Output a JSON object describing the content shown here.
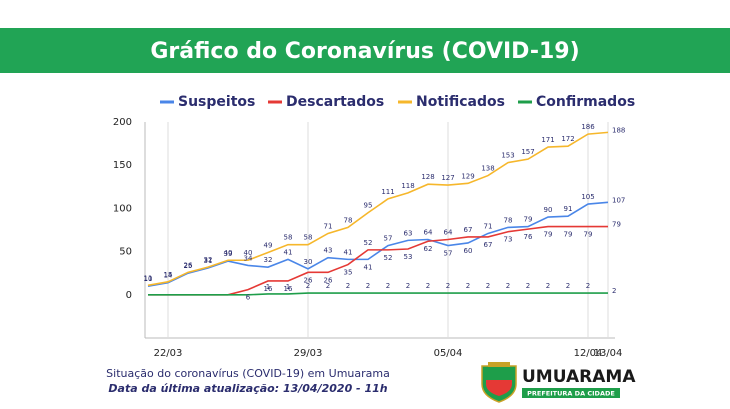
{
  "title": "Gráfico do Coronavírus  (COVID-19)",
  "chart_data": {
    "type": "line",
    "categories": [
      null,
      "22/03",
      null,
      null,
      null,
      null,
      null,
      null,
      "29/03",
      null,
      null,
      null,
      null,
      null,
      null,
      "05/04",
      null,
      null,
      null,
      null,
      null,
      null,
      "12/04",
      "13/04"
    ],
    "series": [
      {
        "name": "Suspeitos",
        "color": "#4a86e8",
        "values": [
          10,
          14,
          25,
          31,
          39,
          34,
          32,
          41,
          30,
          43,
          41,
          41,
          57,
          63,
          64,
          57,
          60,
          71,
          78,
          79,
          90,
          91,
          105,
          107
        ]
      },
      {
        "name": "Descartados",
        "color": "#e53935",
        "values": [
          0,
          0,
          0,
          0,
          0,
          6,
          16,
          16,
          26,
          26,
          35,
          52,
          52,
          53,
          62,
          64,
          67,
          67,
          73,
          76,
          79,
          79,
          79,
          79
        ]
      },
      {
        "name": "Notificados",
        "color": "#f6b72b",
        "values": [
          11,
          15,
          26,
          32,
          40,
          40,
          49,
          58,
          58,
          71,
          78,
          95,
          111,
          118,
          128,
          127,
          129,
          138,
          153,
          157,
          171,
          172,
          186,
          188
        ]
      },
      {
        "name": "Confirmados",
        "color": "#1e9e4a",
        "values": [
          0,
          0,
          0,
          0,
          0,
          0,
          1,
          1,
          2,
          2,
          2,
          2,
          2,
          2,
          2,
          2,
          2,
          2,
          2,
          2,
          2,
          2,
          2,
          2
        ]
      }
    ],
    "ylim": [
      -50,
      200
    ],
    "yticks": [
      0,
      50,
      100,
      150,
      200
    ],
    "grid": true
  },
  "footer": {
    "line1": "Situação do coronavírus (COVID-19) em Umuarama",
    "line2": "Data da última atualização: 13/04/2020 - 11h"
  },
  "logo": {
    "name": "UMUARAMA",
    "subtitle": "PREFEITURA DA CIDADE"
  }
}
